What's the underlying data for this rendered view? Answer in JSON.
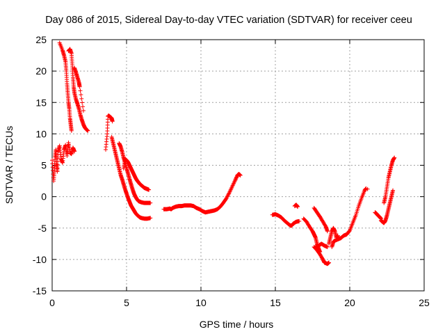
{
  "chart_data": {
    "type": "scatter",
    "title": "Day 086 of 2015, Sidereal Day-to-day VTEC variation (SDTVAR) for receiver ceeu",
    "xlabel": "GPS time / hours",
    "ylabel": "SDTVAR / TECUs",
    "xlim": [
      0,
      25
    ],
    "ylim": [
      -15,
      25
    ],
    "xticks": [
      0,
      5,
      10,
      15,
      20,
      25
    ],
    "yticks": [
      -15,
      -10,
      -5,
      0,
      5,
      10,
      15,
      20,
      25
    ],
    "grid": true,
    "marker": "+",
    "color": "#ff0000",
    "series": [
      {
        "name": "SDTVAR",
        "segments": [
          [
            [
              0.0,
              5.8
            ],
            [
              0.1,
              2.5
            ],
            [
              0.15,
              4.2
            ],
            [
              0.2,
              6.3
            ],
            [
              0.25,
              7.5
            ],
            [
              0.3,
              5.2
            ],
            [
              0.35,
              4.0
            ],
            [
              0.4,
              7.2
            ],
            [
              0.5,
              8.1
            ],
            [
              0.6,
              6.0
            ],
            [
              0.7,
              5.4
            ],
            [
              0.8,
              7.5
            ],
            [
              0.9,
              8.2
            ],
            [
              1.0,
              6.5
            ],
            [
              1.1,
              8.6
            ],
            [
              1.2,
              7.0
            ],
            [
              1.3,
              6.8
            ],
            [
              1.4,
              7.8
            ],
            [
              1.5,
              7.2
            ]
          ],
          [
            [
              0.5,
              24.5
            ],
            [
              0.7,
              23.3
            ],
            [
              0.8,
              22.5
            ],
            [
              0.9,
              21.5
            ],
            [
              0.95,
              20.0
            ],
            [
              1.0,
              18.0
            ],
            [
              1.05,
              16.5
            ],
            [
              1.1,
              15.0
            ],
            [
              1.15,
              14.0
            ],
            [
              1.2,
              12.5
            ],
            [
              1.25,
              11.5
            ],
            [
              1.3,
              10.5
            ]
          ],
          [
            [
              1.1,
              23.2
            ],
            [
              1.2,
              23.5
            ],
            [
              1.3,
              22.8
            ],
            [
              1.35,
              21.0
            ],
            [
              1.4,
              19.0
            ],
            [
              1.45,
              17.5
            ],
            [
              1.5,
              16.5
            ],
            [
              1.6,
              15.5
            ],
            [
              1.7,
              14.8
            ],
            [
              1.8,
              14.0
            ],
            [
              1.9,
              13.0
            ],
            [
              2.0,
              12.2
            ],
            [
              2.1,
              11.5
            ],
            [
              2.2,
              11.0
            ],
            [
              2.3,
              10.7
            ],
            [
              2.4,
              10.5
            ]
          ],
          [
            [
              1.5,
              20.5
            ],
            [
              1.6,
              19.8
            ],
            [
              1.7,
              19.0
            ],
            [
              1.8,
              18.2
            ],
            [
              1.85,
              17.5
            ],
            [
              2.1,
              13.7
            ]
          ],
          [
            [
              3.6,
              7.5
            ],
            [
              3.7,
              10.0
            ],
            [
              3.75,
              12.8
            ],
            [
              3.8,
              12.9
            ],
            [
              3.9,
              12.7
            ],
            [
              4.0,
              12.5
            ],
            [
              4.05,
              12.0
            ]
          ],
          [
            [
              4.0,
              9.5
            ],
            [
              4.1,
              8.5
            ],
            [
              4.2,
              7.5
            ],
            [
              4.3,
              6.5
            ],
            [
              4.4,
              5.5
            ],
            [
              4.5,
              4.5
            ],
            [
              4.6,
              3.5
            ],
            [
              4.7,
              2.8
            ],
            [
              4.8,
              2.0
            ],
            [
              4.9,
              1.2
            ],
            [
              5.0,
              0.5
            ],
            [
              5.1,
              -0.2
            ],
            [
              5.2,
              -0.8
            ],
            [
              5.3,
              -1.4
            ],
            [
              5.4,
              -1.8
            ],
            [
              5.5,
              -2.2
            ],
            [
              5.6,
              -2.6
            ],
            [
              5.7,
              -2.9
            ],
            [
              5.8,
              -3.1
            ],
            [
              5.9,
              -3.3
            ],
            [
              6.0,
              -3.4
            ],
            [
              6.2,
              -3.5
            ],
            [
              6.4,
              -3.5
            ],
            [
              6.6,
              -3.4
            ]
          ],
          [
            [
              4.5,
              8.5
            ],
            [
              4.6,
              8.0
            ],
            [
              4.7,
              7.2
            ],
            [
              4.8,
              6.2
            ],
            [
              4.9,
              5.5
            ],
            [
              5.0,
              4.5
            ],
            [
              5.1,
              3.7
            ],
            [
              5.2,
              2.8
            ],
            [
              5.3,
              2.0
            ],
            [
              5.4,
              1.2
            ],
            [
              5.5,
              0.5
            ],
            [
              5.6,
              0.0
            ],
            [
              5.7,
              -0.4
            ],
            [
              5.8,
              -0.7
            ],
            [
              5.9,
              -0.8
            ],
            [
              6.0,
              -0.9
            ],
            [
              6.2,
              -1.0
            ],
            [
              6.4,
              -1.0
            ],
            [
              6.6,
              -1.0
            ]
          ],
          [
            [
              4.8,
              4.5
            ],
            [
              4.9,
              6.0
            ],
            [
              5.0,
              5.8
            ],
            [
              5.1,
              5.5
            ],
            [
              5.2,
              5.0
            ],
            [
              5.3,
              4.5
            ],
            [
              5.4,
              4.0
            ],
            [
              5.5,
              3.5
            ],
            [
              5.6,
              3.0
            ],
            [
              5.7,
              2.6
            ],
            [
              5.8,
              2.3
            ],
            [
              5.9,
              2.0
            ],
            [
              6.0,
              1.8
            ],
            [
              6.1,
              1.6
            ],
            [
              6.2,
              1.4
            ],
            [
              6.3,
              1.3
            ],
            [
              6.4,
              1.2
            ],
            [
              6.5,
              1.1
            ]
          ],
          [
            [
              7.5,
              -2.0
            ],
            [
              7.7,
              -2.0
            ],
            [
              7.9,
              -1.9
            ],
            [
              8.0,
              -2.0
            ],
            [
              8.1,
              -1.8
            ],
            [
              8.3,
              -1.6
            ],
            [
              8.5,
              -1.5
            ],
            [
              8.7,
              -1.5
            ],
            [
              8.9,
              -1.4
            ],
            [
              9.1,
              -1.4
            ],
            [
              9.3,
              -1.4
            ],
            [
              9.5,
              -1.5
            ],
            [
              9.7,
              -1.8
            ],
            [
              9.9,
              -2.0
            ],
            [
              10.1,
              -2.3
            ],
            [
              10.3,
              -2.5
            ],
            [
              10.5,
              -2.4
            ],
            [
              10.7,
              -2.3
            ],
            [
              10.9,
              -2.2
            ],
            [
              11.1,
              -2.0
            ],
            [
              11.3,
              -1.6
            ],
            [
              11.5,
              -1.0
            ],
            [
              11.7,
              -0.3
            ],
            [
              11.9,
              0.6
            ],
            [
              12.1,
              1.6
            ],
            [
              12.3,
              2.6
            ],
            [
              12.45,
              3.4
            ],
            [
              12.55,
              3.6
            ],
            [
              12.65,
              3.4
            ]
          ],
          [
            [
              14.8,
              -2.9
            ],
            [
              15.0,
              -2.8
            ],
            [
              15.2,
              -3.0
            ],
            [
              15.4,
              -3.3
            ],
            [
              15.6,
              -3.8
            ],
            [
              15.8,
              -4.2
            ],
            [
              16.0,
              -4.6
            ],
            [
              16.1,
              -4.6
            ],
            [
              16.2,
              -4.3
            ],
            [
              16.4,
              -4.0
            ],
            [
              16.6,
              -3.9
            ]
          ],
          [
            [
              16.3,
              -1.5
            ],
            [
              16.4,
              -1.3
            ],
            [
              16.5,
              -1.6
            ]
          ],
          [
            [
              16.9,
              -3.5
            ],
            [
              17.1,
              -4.0
            ],
            [
              17.3,
              -4.8
            ],
            [
              17.5,
              -5.5
            ],
            [
              17.6,
              -6.0
            ],
            [
              17.7,
              -6.5
            ],
            [
              17.8,
              -7.5
            ],
            [
              17.9,
              -8.2
            ],
            [
              18.0,
              -8.8
            ]
          ],
          [
            [
              17.6,
              -8.0
            ],
            [
              17.8,
              -8.5
            ],
            [
              18.0,
              -9.2
            ],
            [
              18.2,
              -10.0
            ],
            [
              18.3,
              -10.5
            ],
            [
              18.5,
              -10.7
            ],
            [
              18.6,
              -10.5
            ]
          ],
          [
            [
              17.6,
              -1.8
            ],
            [
              17.8,
              -2.5
            ],
            [
              18.0,
              -3.2
            ],
            [
              18.2,
              -4.0
            ],
            [
              18.4,
              -4.8
            ],
            [
              18.5,
              -5.5
            ]
          ],
          [
            [
              17.7,
              -8.0
            ],
            [
              17.9,
              -7.8
            ],
            [
              18.1,
              -7.5
            ],
            [
              18.3,
              -7.8
            ],
            [
              18.5,
              -8.0
            ]
          ],
          [
            [
              18.6,
              -7.5
            ],
            [
              18.7,
              -6.5
            ],
            [
              18.8,
              -5.5
            ],
            [
              18.9,
              -5.0
            ],
            [
              19.0,
              -5.5
            ],
            [
              19.1,
              -6.5
            ],
            [
              19.2,
              -6.2
            ]
          ],
          [
            [
              18.8,
              -8.0
            ],
            [
              18.9,
              -7.2
            ],
            [
              19.0,
              -7.0
            ],
            [
              19.2,
              -6.8
            ],
            [
              19.4,
              -6.6
            ],
            [
              19.6,
              -6.2
            ],
            [
              19.8,
              -6.0
            ],
            [
              20.0,
              -5.4
            ],
            [
              20.2,
              -4.2
            ],
            [
              20.4,
              -3.0
            ],
            [
              20.6,
              -1.5
            ],
            [
              20.8,
              -0.2
            ],
            [
              21.0,
              1.0
            ],
            [
              21.1,
              1.3
            ]
          ],
          [
            [
              21.7,
              -2.5
            ],
            [
              21.8,
              -2.7
            ],
            [
              21.9,
              -3.0
            ],
            [
              22.0,
              -3.2
            ],
            [
              22.1,
              -3.5
            ]
          ],
          [
            [
              22.1,
              -3.8
            ],
            [
              22.2,
              -4.0
            ],
            [
              22.3,
              -4.2
            ],
            [
              22.4,
              -3.8
            ],
            [
              22.5,
              -3.0
            ],
            [
              22.6,
              -2.0
            ],
            [
              22.7,
              -1.0
            ],
            [
              22.8,
              0.0
            ],
            [
              22.9,
              1.0
            ]
          ],
          [
            [
              22.3,
              -1.0
            ],
            [
              22.4,
              0.0
            ],
            [
              22.5,
              1.5
            ],
            [
              22.6,
              3.0
            ],
            [
              22.7,
              4.0
            ],
            [
              22.8,
              5.0
            ],
            [
              22.9,
              5.8
            ],
            [
              23.0,
              6.2
            ]
          ],
          [
            [
              21.2,
              1.2
            ]
          ]
        ]
      }
    ]
  }
}
